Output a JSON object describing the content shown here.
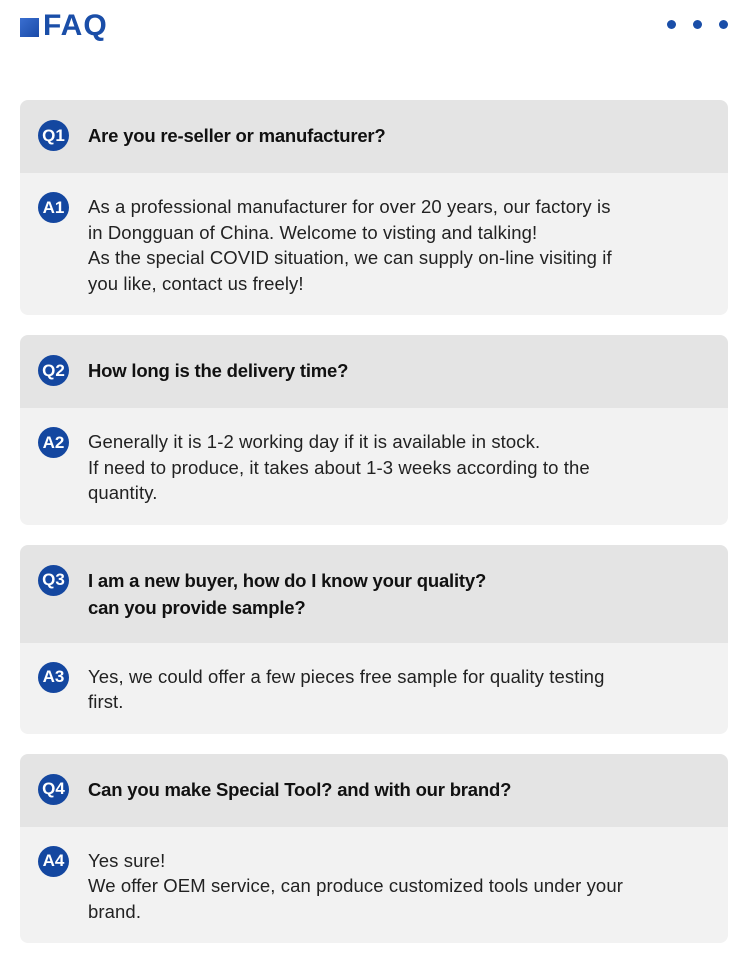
{
  "header": {
    "title": "FAQ",
    "menu_icon": "more-dots-icon",
    "accent": "#1a4ea8"
  },
  "faq": [
    {
      "q_badge": "Q1",
      "question": "Are you re-seller or manufacturer?",
      "a_badge": "A1",
      "answer": "As a professional manufacturer for over 20 years, our factory is\nin Dongguan of China. Welcome to visting and talking!\nAs the special COVID situation, we can supply on-line visiting if\nyou like, contact us freely!"
    },
    {
      "q_badge": "Q2",
      "question": "How long is the delivery time?",
      "a_badge": "A2",
      "answer": "Generally it is 1-2 working day if it is available in stock.\nIf need to produce, it takes about 1-3 weeks according to the\nquantity."
    },
    {
      "q_badge": "Q3",
      "question": "I am a new buyer, how do I know your quality?\ncan you provide sample?",
      "a_badge": "A3",
      "answer": "Yes, we could offer a few pieces free sample for quality testing\nfirst."
    },
    {
      "q_badge": "Q4",
      "question": "Can you make Special Tool? and with our brand?",
      "a_badge": "A4",
      "answer": "Yes sure!\nWe offer OEM service, can produce customized tools under your\nbrand."
    }
  ]
}
